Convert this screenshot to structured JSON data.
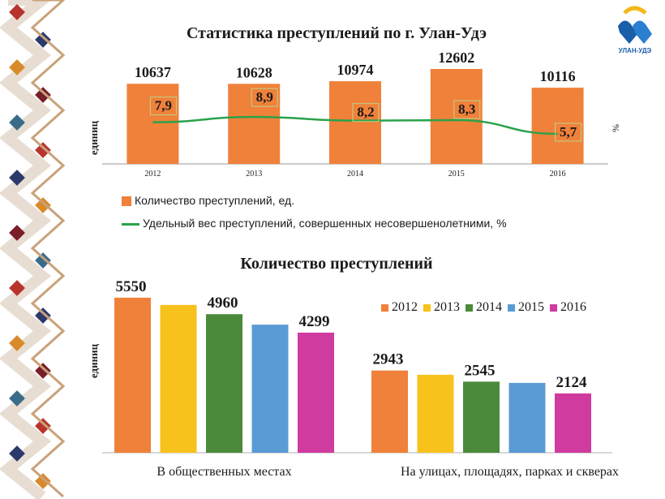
{
  "logo": {
    "icon": "ulan-ude-logo-icon",
    "text": "УЛАН-УДЭ"
  },
  "chart1": {
    "title": "Статистика преступлений по г. Улан-Удэ",
    "ylabel_left": "единиц",
    "ylabel_right": "%",
    "legend": {
      "bars": "Количество преступлений,  ед.",
      "line": "Удельный вес преступлений,  совершенных   несовершенолетними,  %"
    },
    "colors": {
      "bar": "#f0813a",
      "line": "#2aa24a"
    }
  },
  "chart2": {
    "title": "Количество преступлений",
    "ylabel": "единиц",
    "colors": [
      "#f0813a",
      "#f7c21b",
      "#4a8a3a",
      "#5b9bd5",
      "#cf3b9e"
    ]
  },
  "chart_data": [
    {
      "type": "bar",
      "title": "Статистика преступлений по г. Улан-Удэ",
      "categories": [
        "2012",
        "2013",
        "2014",
        "2015",
        "2016"
      ],
      "series": [
        {
          "name": "Количество преступлений,  ед.",
          "type": "bar",
          "values": [
            10637,
            10628,
            10974,
            12602,
            10116
          ],
          "labels": [
            "10637",
            "10628",
            "10974",
            "12602",
            "10116"
          ]
        },
        {
          "name": "Удельный вес преступлений,  совершенных   несовершенолетними,  %",
          "type": "line",
          "values": [
            7.9,
            8.9,
            8.2,
            8.3,
            5.7
          ],
          "labels": [
            "7,9",
            "8,9",
            "8,2",
            "8,3",
            "5,7"
          ]
        }
      ],
      "ylabel": "единиц",
      "y2label": "%",
      "ylim": [
        0,
        14000
      ],
      "y2lim": [
        0,
        20
      ],
      "grid": false,
      "legend": "bottom"
    },
    {
      "type": "bar",
      "title": "Количество преступлений",
      "categories": [
        "В общественных местах",
        "На улицах, площадях, парках и скверах"
      ],
      "series": [
        {
          "name": "2012",
          "values": [
            5550,
            2943
          ],
          "labels": [
            "5550",
            "2943"
          ]
        },
        {
          "name": "2013",
          "values": [
            5290,
            2790
          ],
          "labels": [
            "",
            ""
          ]
        },
        {
          "name": "2014",
          "values": [
            4960,
            2545
          ],
          "labels": [
            "4960",
            "2545"
          ]
        },
        {
          "name": "2015",
          "values": [
            4585,
            2500
          ],
          "labels": [
            "",
            ""
          ]
        },
        {
          "name": "2016",
          "values": [
            4299,
            2124
          ],
          "labels": [
            "4299",
            "2124"
          ]
        }
      ],
      "ylabel": "единиц",
      "ylim": [
        0,
        5750
      ],
      "grid": false,
      "legend": "top-right"
    }
  ]
}
